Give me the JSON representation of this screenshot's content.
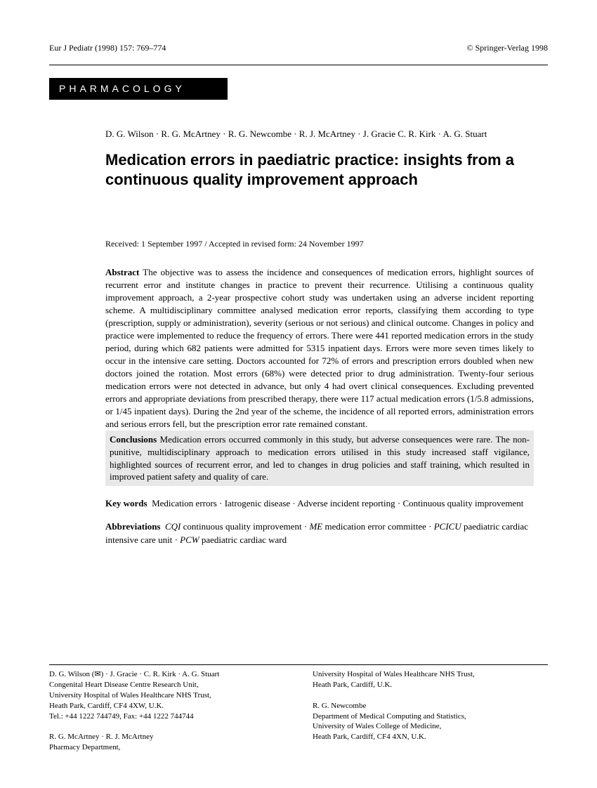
{
  "header": {
    "journal": "Eur J Pediatr (1998) 157: 769–774",
    "copyright": "© Springer-Verlag 1998"
  },
  "category": "PHARMACOLOGY",
  "authors": "D. G. Wilson · R. G. McArtney · R. G. Newcombe · R. J. McArtney · J. Gracie C. R. Kirk · A. G. Stuart",
  "title": "Medication errors in paediatric practice: insights from a continuous quality improvement approach",
  "received": "Received: 1 September 1997 / Accepted in revised form: 24 November 1997",
  "abstract_label": "Abstract",
  "abstract_body": "The objective was to assess the incidence and consequences of medication errors, highlight sources of recurrent error and institute changes in practice to prevent their recurrence. Utilising a continuous quality improvement approach, a 2-year prospective cohort study was undertaken using an adverse incident reporting scheme. A multidisciplinary committee analysed medication error reports, classifying them according to type (prescription, supply or administration), severity (serious or not serious) and clinical outcome. Changes in policy and practice were implemented to reduce the frequency of errors. There were 441 reported medication errors in the study period, during which 682 patients were admitted for 5315 inpatient days. Errors were more seven times likely to occur in the intensive care setting. Doctors accounted for 72% of errors and prescription errors doubled when new doctors joined the rotation. Most errors (68%) were detected prior to drug administration. Twenty-four serious medication errors were not detected in advance, but only 4 had overt clinical consequences. Excluding prevented errors and appropriate deviations from prescribed therapy, there were 117 actual medication errors (1/5.8 admissions, or 1/45 inpatient days). During the 2nd year of the scheme, the incidence of all reported errors, administration errors and serious errors fell, but the prescription error rate remained constant.",
  "conclusions_label": "Conclusions",
  "conclusions_body": "Medication errors occurred commonly in this study, but adverse consequences were rare. The non-punitive, multidisciplinary approach to medication errors utilised in this study increased staff vigilance, highlighted sources of recurrent error, and led to changes in drug policies and staff training, which resulted in improved patient safety and quality of care.",
  "keywords_label": "Key words",
  "keywords_body": "Medication errors · Iatrogenic disease · Adverse incident reporting · Continuous quality improvement",
  "abbrev_label": "Abbreviations",
  "abbrev_items": [
    {
      "term": "CQI",
      "def": "continuous quality improvement"
    },
    {
      "term": "ME",
      "def": "medication error committee"
    },
    {
      "term": "PCICU",
      "def": "paediatric cardiac intensive care unit"
    },
    {
      "term": "PCW",
      "def": "paediatric cardiac ward"
    }
  ],
  "footer": {
    "left": [
      "D. G. Wilson (✉) · J. Gracie · C. R. Kirk · A. G. Stuart",
      "Congenital Heart Disease Centre Research Unit,",
      "University Hospital of Wales Healthcare NHS Trust,",
      "Heath Park, Cardiff, CF4 4XW, U.K.",
      "Tel.: +44 1222 744749, Fax: +44 1222 744744",
      "",
      "R. G. McArtney · R. J. McArtney",
      "Pharmacy Department,"
    ],
    "right": [
      "University Hospital of Wales Healthcare NHS Trust,",
      "Heath Park, Cardiff, U.K.",
      "",
      "R. G. Newcombe",
      "Department of Medical Computing and Statistics,",
      "University of Wales College of Medicine,",
      "Heath Park, Cardiff, CF4 4XN, U.K."
    ]
  }
}
